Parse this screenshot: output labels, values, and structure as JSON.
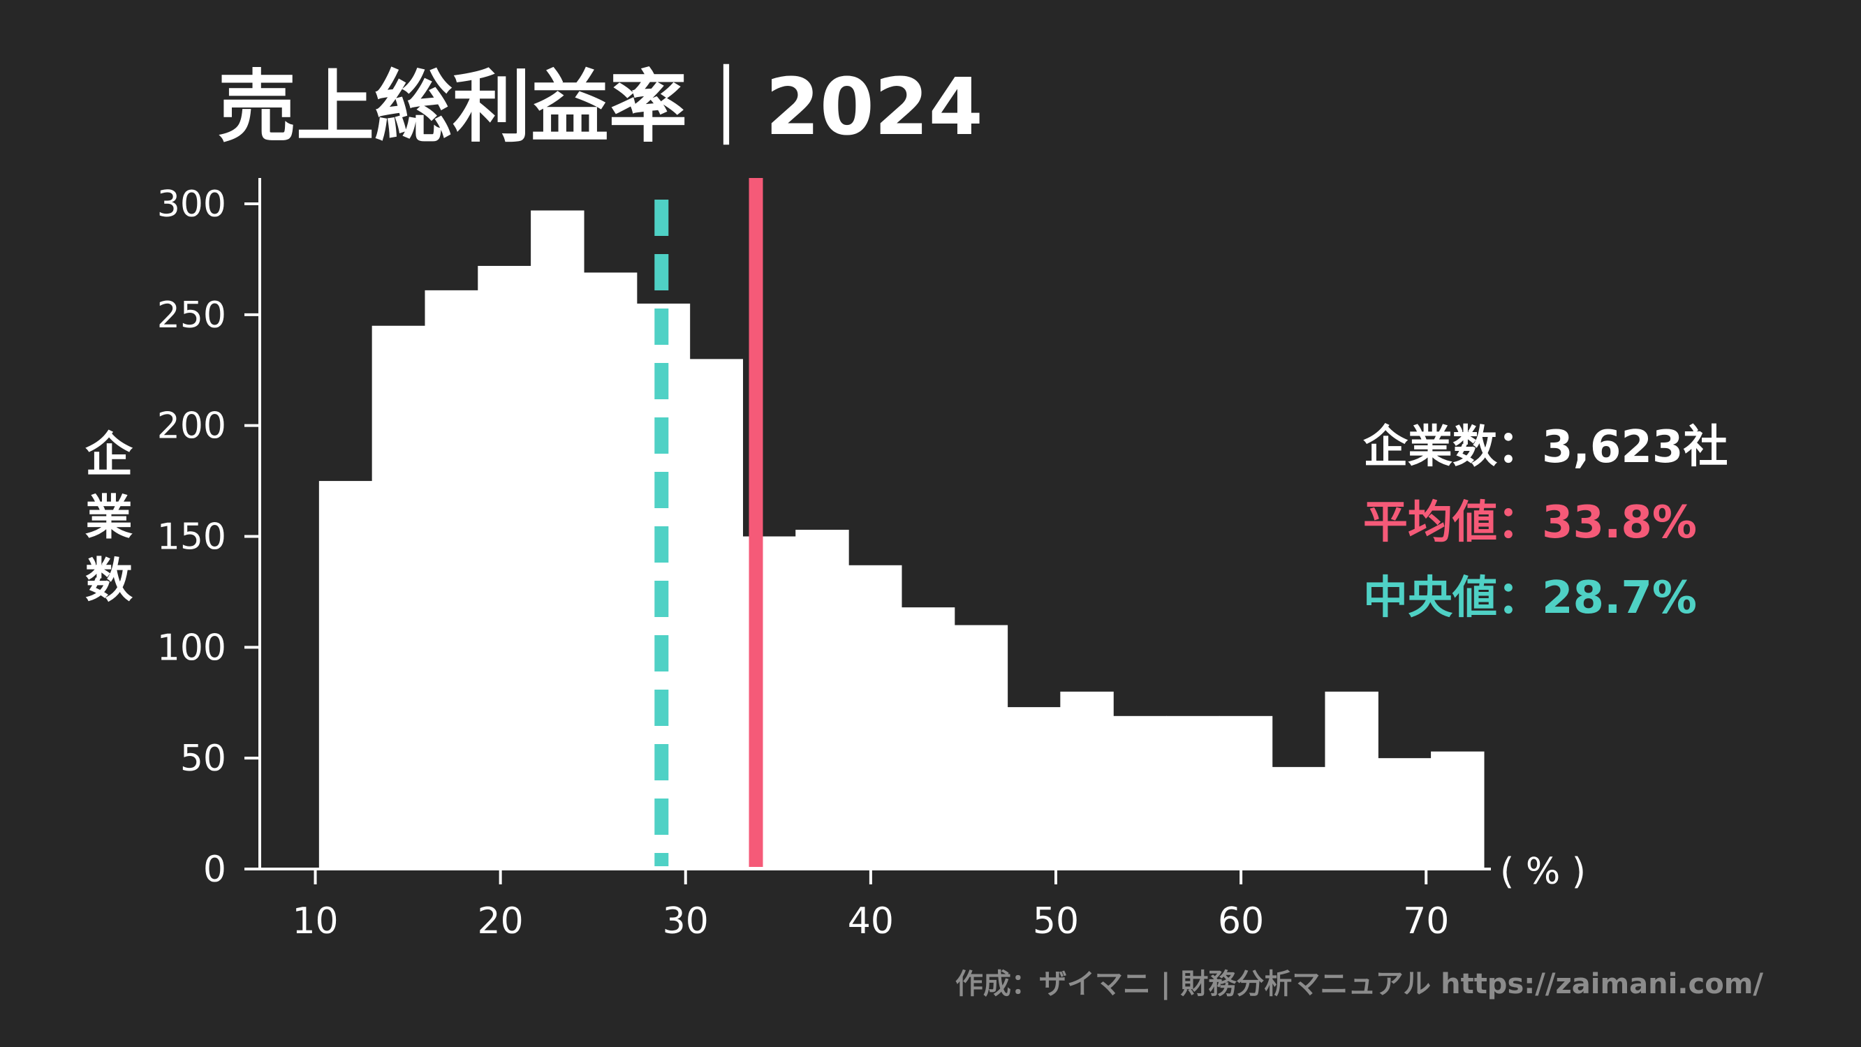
{
  "colors": {
    "background": "#272727",
    "bars": "#ffffff",
    "axis": "#ffffff",
    "mean": "#f55a78",
    "median": "#4fd1c5",
    "credit": "#8c8c8c"
  },
  "chart_data": {
    "type": "bar",
    "title": "売上総利益率｜2024",
    "ylabel": "企業数",
    "xlabel": "",
    "x_unit": "( % )",
    "xlim": [
      7,
      73.5
    ],
    "ylim": [
      0,
      312
    ],
    "x_ticks": [
      10,
      20,
      30,
      40,
      50,
      60,
      70
    ],
    "y_ticks": [
      0,
      50,
      100,
      150,
      200,
      250,
      300
    ],
    "bin_edges": [
      10.2,
      13.06,
      15.92,
      18.78,
      21.64,
      24.5,
      27.36,
      30.22,
      33.08,
      35.94,
      38.8,
      41.66,
      44.52,
      47.38,
      50.24,
      53.1,
      55.96,
      58.82,
      61.68,
      64.54,
      67.4,
      70.26,
      73.12
    ],
    "values": [
      175,
      245,
      261,
      272,
      297,
      269,
      255,
      230,
      150,
      153,
      137,
      118,
      110,
      73,
      80,
      69,
      69,
      69,
      46,
      80,
      50,
      53
    ],
    "mean": 33.8,
    "median": 28.7,
    "stats": {
      "count_label": "企業数：",
      "count_value": "3,623社",
      "mean_label": "平均値：",
      "mean_value": "33.8%",
      "median_label": "中央値：",
      "median_value": "28.7%"
    }
  },
  "credit": "作成：ザイマニ | 財務分析マニュアル https://zaimani.com/"
}
